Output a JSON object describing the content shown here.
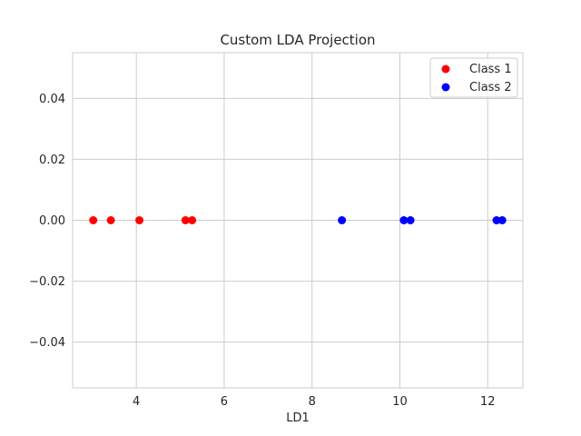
{
  "chart_data": {
    "type": "scatter",
    "title": "Custom LDA Projection",
    "xlabel": "LD1",
    "ylabel": "",
    "xlim": [
      2.55,
      12.8
    ],
    "ylim": [
      -0.055,
      0.055
    ],
    "xticks": [
      4,
      6,
      8,
      10,
      12
    ],
    "yticks": [
      -0.04,
      -0.02,
      0.0,
      0.02,
      0.04
    ],
    "xtick_labels": [
      "4",
      "6",
      "8",
      "10",
      "12"
    ],
    "ytick_labels": [
      "−0.04",
      "−0.02",
      "0.00",
      "0.02",
      "0.04"
    ],
    "grid": true,
    "legend_position": "top-right",
    "series": [
      {
        "name": "Class 1",
        "color": "#ff0000",
        "x": [
          3.02,
          3.42,
          4.07,
          5.12,
          5.27
        ],
        "y": [
          0,
          0,
          0,
          0,
          0
        ]
      },
      {
        "name": "Class 2",
        "color": "#0000ff",
        "x": [
          8.68,
          10.09,
          10.24,
          12.2,
          12.33
        ],
        "y": [
          0,
          0,
          0,
          0,
          0
        ]
      }
    ]
  }
}
